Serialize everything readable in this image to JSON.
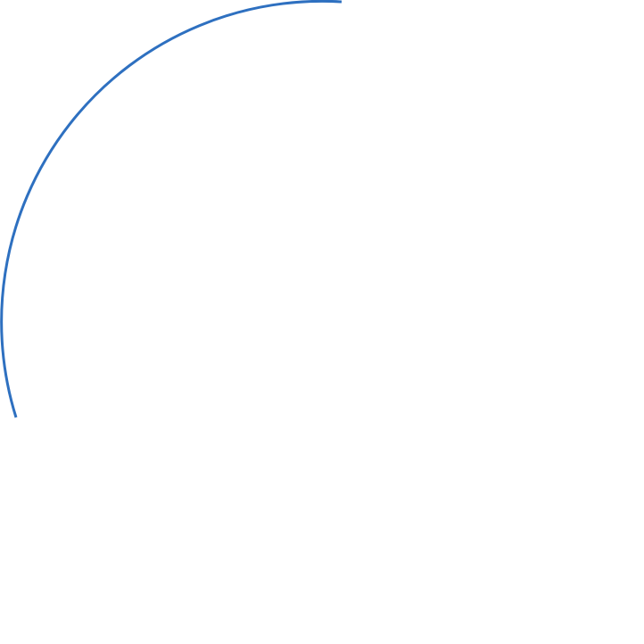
{
  "shape": {
    "type": "arc",
    "stroke_color": "#2E70C0"
  }
}
